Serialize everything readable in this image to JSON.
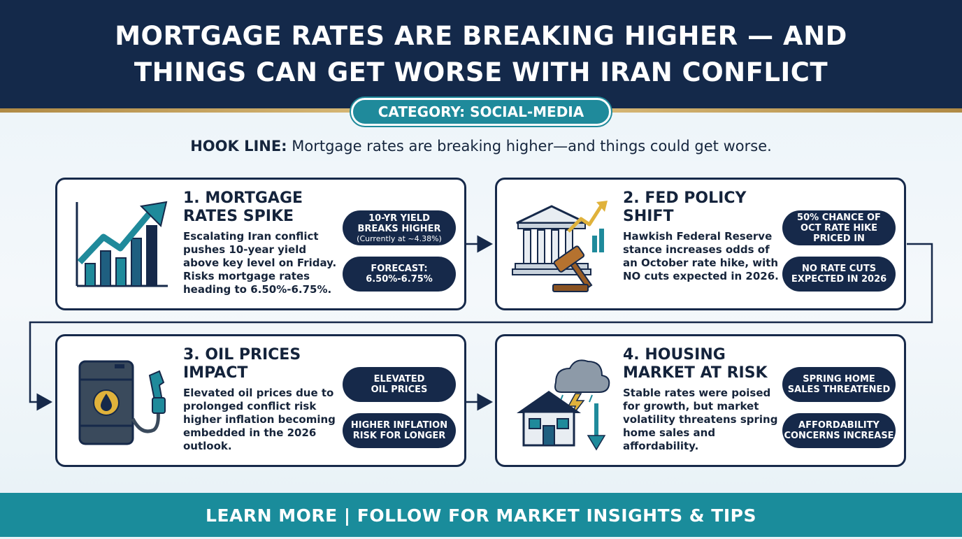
{
  "header": {
    "title_line1": "MORTGAGE RATES ARE BREAKING HIGHER — AND",
    "title_line2": "THINGS CAN GET WORSE WITH IRAN CONFLICT",
    "category": "CATEGORY: SOCIAL-MEDIA"
  },
  "hook": {
    "label": "HOOK LINE:",
    "text": " Mortgage rates are breaking higher—and things could get worse."
  },
  "cards": [
    {
      "title": "1. MORTGAGE RATES SPIKE",
      "description": "Escalating Iran conflict pushes 10-year yield above key level on Friday. Risks mortgage rates heading to 6.50%-6.75%.",
      "icon": "rising-chart-icon",
      "pills": [
        {
          "line1": "10-YR YIELD",
          "line2": "BREAKS HIGHER",
          "sub": "(Currently at ~4.38%)"
        },
        {
          "line1": "FORECAST:",
          "line2": "6.50%-6.75%"
        }
      ]
    },
    {
      "title": "2. FED POLICY SHIFT",
      "description": "Hawkish Federal Reserve stance increases odds of an October rate hike, with NO cuts expected in 2026.",
      "icon": "federal-building-gavel-icon",
      "pills": [
        {
          "line1": "50% CHANCE OF",
          "line2": "OCT RATE HIKE",
          "line3": "PRICED IN"
        },
        {
          "line1": "NO RATE CUTS",
          "line2": "EXPECTED IN 2026"
        }
      ]
    },
    {
      "title": "3. OIL PRICES IMPACT",
      "description": "Elevated oil prices due to prolonged conflict risk higher inflation becoming embedded in the 2026 outlook.",
      "icon": "oil-barrel-pump-icon",
      "pills": [
        {
          "line1": "ELEVATED",
          "line2": "OIL PRICES"
        },
        {
          "line1": "HIGHER INFLATION",
          "line2": "RISK FOR LONGER"
        }
      ]
    },
    {
      "title": "4. HOUSING MARKET AT RISK",
      "description": "Stable rates were poised for growth, but market volatility threatens spring home sales and affordability.",
      "icon": "house-storm-icon",
      "pills": [
        {
          "line1": "SPRING HOME",
          "line2": "SALES THREATENED"
        },
        {
          "line1": "AFFORDABILITY",
          "line2": "CONCERNS INCREASE"
        }
      ]
    }
  ],
  "footer": {
    "text": "LEARN MORE | FOLLOW FOR MARKET INSIGHTS & TIPS"
  },
  "colors": {
    "navy": "#14294a",
    "teal": "#1a8c9b",
    "gold": "#d4b06a"
  }
}
